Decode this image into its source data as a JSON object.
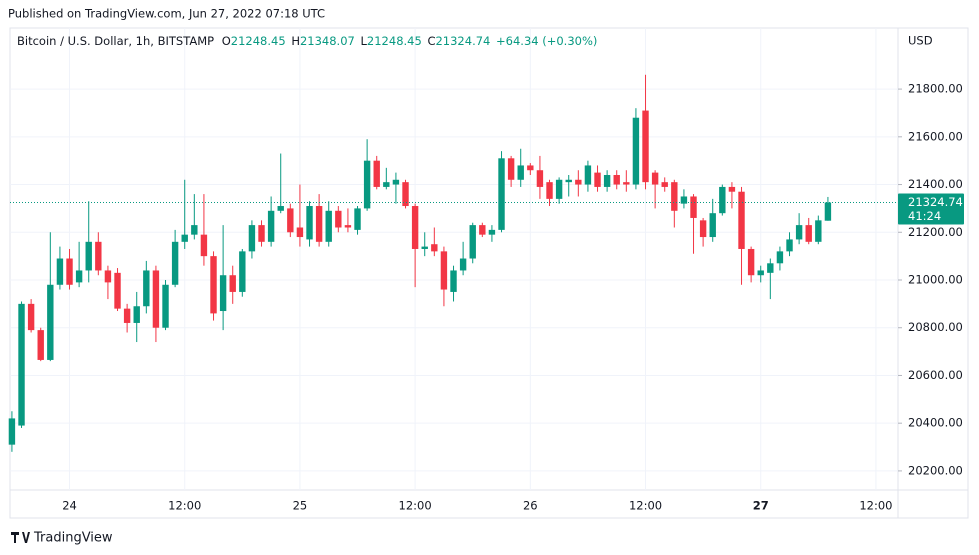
{
  "header": {
    "published": "Published on TradingView.com, Jun 27, 2022 07:18 UTC"
  },
  "footer": {
    "brand": "TradingView"
  },
  "chart_data": {
    "type": "candlestick",
    "legend": {
      "symbol": "Bitcoin / U.S. Dollar, 1h, BITSTAMP",
      "open_label": "O",
      "open": 21248.45,
      "high_label": "H",
      "high": 21348.07,
      "low_label": "L",
      "low": 21248.45,
      "close_label": "C",
      "close": 21324.74,
      "change": "+64.34 (+0.30%)"
    },
    "currency": "USD",
    "last_price": 21324.74,
    "countdown": "41:24",
    "up_color": "#089981",
    "down_color": "#f23645",
    "grid": true,
    "categories": [
      null,
      null,
      null,
      null,
      null,
      null,
      "24",
      null,
      null,
      null,
      null,
      null,
      null,
      null,
      null,
      null,
      null,
      null,
      "12:00",
      null,
      null,
      null,
      null,
      null,
      null,
      null,
      null,
      null,
      null,
      null,
      "25",
      null,
      null,
      null,
      null,
      null,
      null,
      null,
      null,
      null,
      null,
      null,
      "12:00",
      null,
      null,
      null,
      null,
      null,
      null,
      null,
      null,
      null,
      null,
      null,
      "26",
      null,
      null,
      null,
      null,
      null,
      null,
      null,
      null,
      null,
      null,
      null,
      "12:00",
      null,
      null,
      null,
      null,
      null,
      null,
      null,
      null,
      null,
      null,
      null,
      "27",
      null,
      null,
      null,
      null,
      null,
      null,
      null
    ],
    "xticks": [
      {
        "value": 90,
        "label": "12:00"
      }
    ],
    "xlim": [
      -0.2,
      92.3
    ],
    "open": [
      20310,
      20390,
      20900,
      20790,
      20665,
      20980,
      21090,
      20990,
      21040,
      21160,
      21040,
      21030,
      20880,
      20820,
      20890,
      21040,
      20800,
      20980,
      21160,
      21190,
      21190,
      21100,
      20870,
      21020,
      20950,
      21120,
      21230,
      21160,
      21290,
      21300,
      21220,
      21170,
      21310,
      21160,
      21290,
      21230,
      21210,
      21300,
      21500,
      21390,
      21400,
      21410,
      21310,
      21130,
      21150,
      21120,
      20950,
      21040,
      21090,
      21230,
      21190,
      21210,
      21510,
      21420,
      21480,
      21460,
      21410,
      21340,
      21410,
      21420,
      21400,
      21450,
      21390,
      21440,
      21410,
      21400,
      21710,
      21450,
      21410,
      21410,
      21320,
      21350,
      21250,
      21180,
      21280,
      21390,
      21370,
      21130,
      21020,
      21030,
      21070,
      21120,
      21170,
      21230,
      21160,
      21248.45
    ],
    "high": [
      20450,
      20910,
      20920,
      20800,
      21200,
      21140,
      21130,
      21160,
      21330,
      21200,
      21060,
      21050,
      20900,
      20950,
      21080,
      21060,
      21000,
      21210,
      21420,
      21360,
      21360,
      21120,
      21230,
      21060,
      21130,
      21250,
      21250,
      21350,
      21530,
      21320,
      21400,
      21330,
      21360,
      21330,
      21310,
      21300,
      21310,
      21590,
      21520,
      21470,
      21450,
      21420,
      21320,
      21200,
      21220,
      21140,
      21060,
      21160,
      21240,
      21240,
      21230,
      21540,
      21520,
      21550,
      21490,
      21520,
      21420,
      21430,
      21440,
      21460,
      21500,
      21480,
      21460,
      21460,
      21460,
      21720,
      21860,
      21460,
      21430,
      21420,
      21380,
      21360,
      21260,
      21340,
      21400,
      21410,
      21390,
      21140,
      21060,
      21090,
      21140,
      21200,
      21280,
      21260,
      21270,
      21348.07
    ],
    "low": [
      20280,
      20380,
      20780,
      20660,
      20660,
      20960,
      20960,
      20970,
      20990,
      21020,
      20920,
      20870,
      20780,
      20740,
      20860,
      20740,
      20790,
      20970,
      21130,
      21170,
      21060,
      20830,
      20790,
      20900,
      20930,
      21090,
      21140,
      21140,
      21280,
      21180,
      21140,
      21140,
      21140,
      21140,
      21200,
      21200,
      21190,
      21290,
      21380,
      21380,
      21320,
      21300,
      20970,
      21100,
      21100,
      20890,
      20910,
      21020,
      21070,
      21180,
      21160,
      21200,
      21390,
      21390,
      21440,
      21340,
      21310,
      21320,
      21350,
      21350,
      21370,
      21370,
      21370,
      21380,
      21370,
      21380,
      21380,
      21300,
      21370,
      21220,
      21300,
      21110,
      21140,
      21160,
      21270,
      21300,
      20980,
      20990,
      20990,
      20920,
      21040,
      21100,
      21150,
      21150,
      21150,
      21248.45
    ],
    "close": [
      20420,
      20900,
      20790,
      20665,
      20980,
      21090,
      20980,
      21040,
      21160,
      21040,
      20990,
      20880,
      20820,
      20890,
      21040,
      20800,
      20980,
      21160,
      21190,
      21230,
      21100,
      20860,
      21020,
      20950,
      21120,
      21230,
      21160,
      21290,
      21310,
      21200,
      21180,
      21310,
      21160,
      21290,
      21220,
      21220,
      21300,
      21500,
      21390,
      21410,
      21420,
      21310,
      21130,
      21140,
      21120,
      20960,
      21040,
      21090,
      21230,
      21190,
      21210,
      21510,
      21420,
      21480,
      21460,
      21390,
      21340,
      21420,
      21420,
      21400,
      21480,
      21390,
      21440,
      21400,
      21400,
      21680,
      21410,
      21400,
      21390,
      21290,
      21350,
      21260,
      21180,
      21280,
      21390,
      21370,
      21130,
      21020,
      21040,
      21070,
      21120,
      21170,
      21230,
      21160,
      21250,
      21324.74
    ],
    "ylim": [
      20120,
      22056
    ],
    "yticks": [
      {
        "value": 20200,
        "label": "20200.00"
      },
      {
        "value": 20400,
        "label": "20400.00"
      },
      {
        "value": 20600,
        "label": "20600.00"
      },
      {
        "value": 20800,
        "label": "20800.00"
      },
      {
        "value": 21000,
        "label": "21000.00"
      },
      {
        "value": 21200,
        "label": "21200.00"
      },
      {
        "value": 21400,
        "label": "21400.00"
      },
      {
        "value": 21600,
        "label": "21600.00"
      },
      {
        "value": 21800,
        "label": "21800.00"
      }
    ]
  }
}
